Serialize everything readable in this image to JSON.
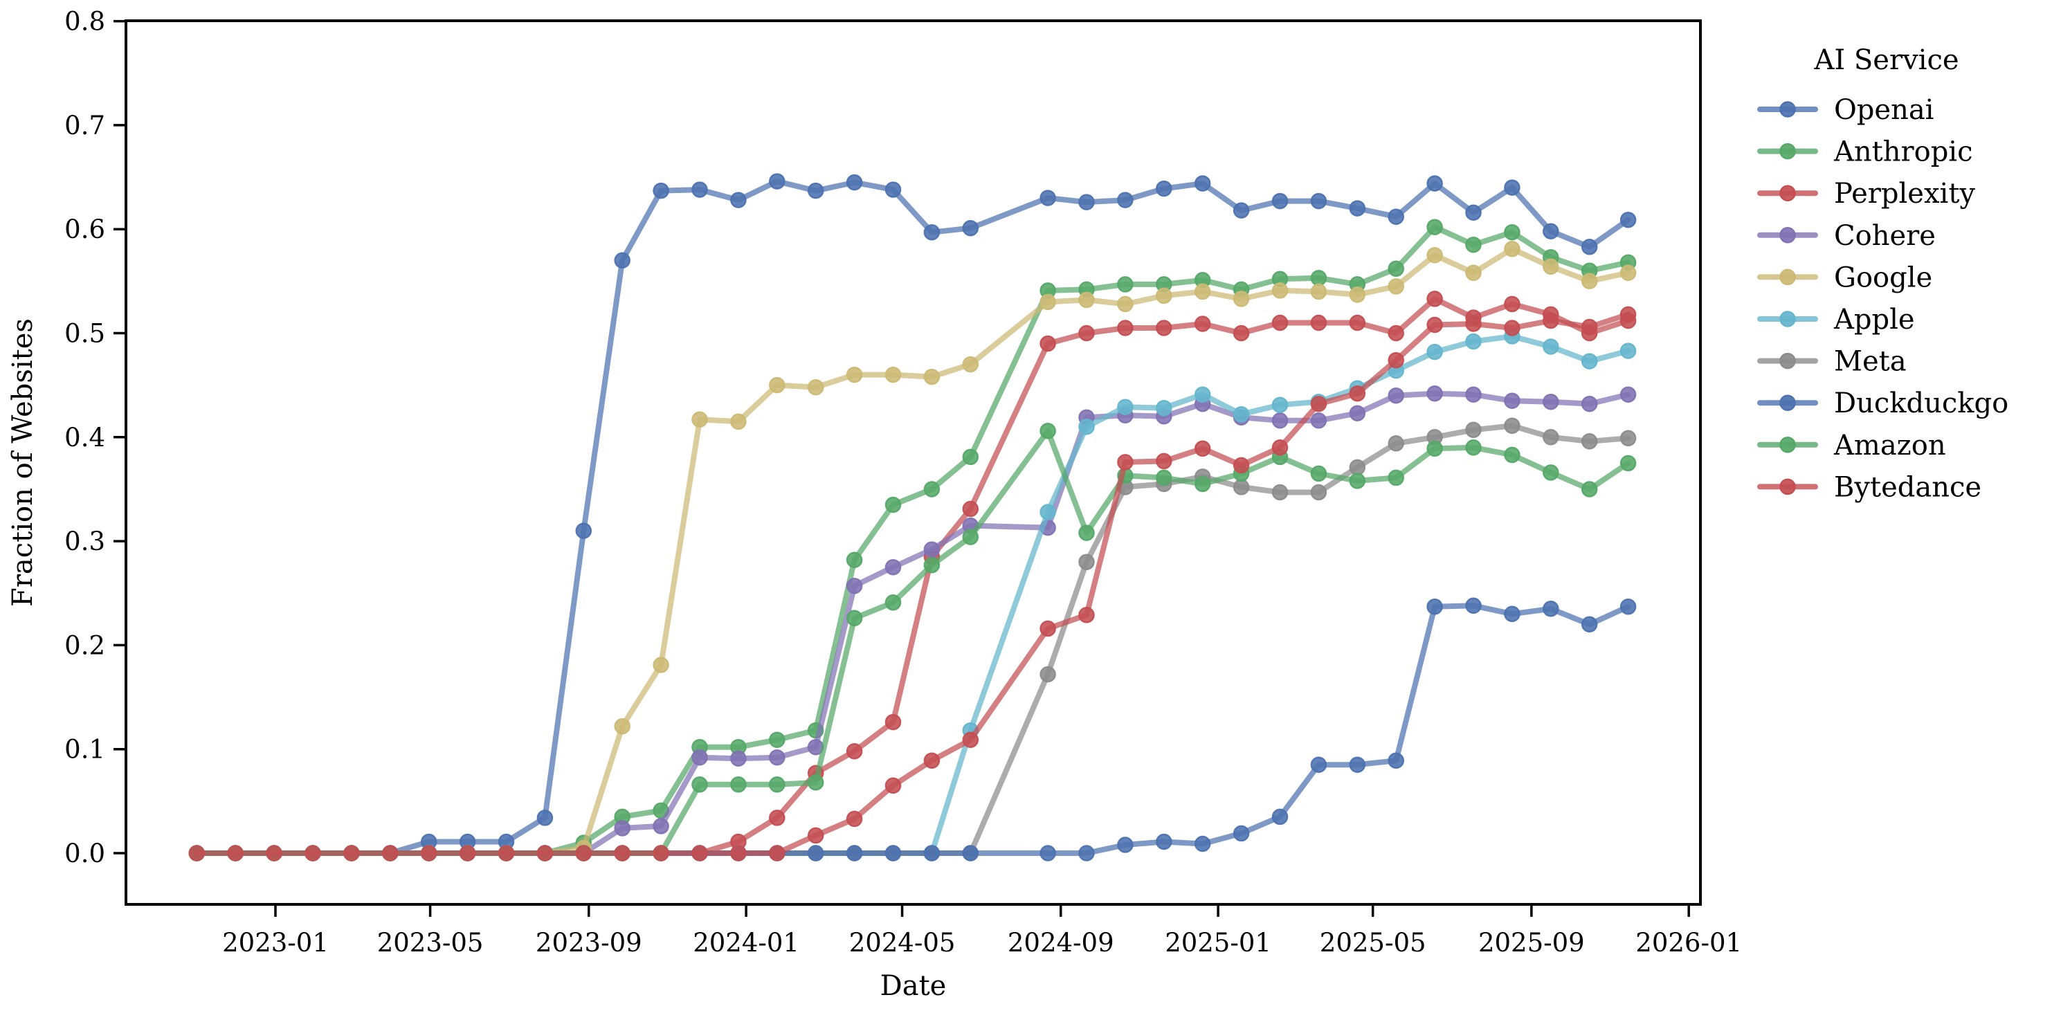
{
  "chart_data": {
    "type": "line",
    "title": "",
    "xlabel": "Date",
    "ylabel": "Fraction of Websites",
    "ylim": [
      0.0,
      0.8
    ],
    "grid": false,
    "legend_title": "AI Service",
    "legend_position": "right-outside",
    "ytick_labels": [
      "0.0",
      "0.1",
      "0.2",
      "0.3",
      "0.4",
      "0.5",
      "0.6",
      "0.7",
      "0.8"
    ],
    "yticks": [
      0.0,
      0.1,
      0.2,
      0.3,
      0.4,
      0.5,
      0.6,
      0.7,
      0.8
    ],
    "xtick_labels": [
      "2023-01",
      "2023-05",
      "2023-09",
      "2024-01",
      "2024-05",
      "2024-09",
      "2025-01",
      "2025-05",
      "2025-09",
      "2026-01"
    ],
    "xtick_day_offsets": [
      0,
      120,
      243,
      365,
      486,
      609,
      731,
      851,
      974,
      1096
    ],
    "x_months": [
      "2022-11",
      "2022-12",
      "2023-01",
      "2023-02",
      "2023-03",
      "2023-04",
      "2023-05",
      "2023-06",
      "2023-07",
      "2023-08",
      "2023-09",
      "2023-10",
      "2023-11",
      "2023-12",
      "2024-01",
      "2024-02",
      "2024-03",
      "2024-04",
      "2024-05",
      "2024-06",
      "2024-07",
      "2024-09",
      "2024-10",
      "2024-11",
      "2024-12",
      "2025-01",
      "2025-02",
      "2025-03",
      "2025-04",
      "2025-05",
      "2025-06",
      "2025-07",
      "2025-08",
      "2025-09",
      "2025-10",
      "2025-11",
      "2025-12"
    ],
    "x_sample_index": [
      0,
      1,
      2,
      3,
      4,
      5,
      6,
      7,
      8,
      9,
      10,
      11,
      12,
      13,
      14,
      15,
      16,
      17,
      18,
      19,
      20,
      22,
      23,
      24,
      25,
      26,
      27,
      28,
      29,
      30,
      31,
      32,
      33,
      34,
      35,
      36,
      37
    ],
    "series": [
      {
        "name": "Openai",
        "color": "#4C72B0",
        "values": [
          0,
          0,
          0,
          0,
          0,
          0,
          0.011,
          0.011,
          0.011,
          0.034,
          0.31,
          0.57,
          0.637,
          0.638,
          0.628,
          0.646,
          0.637,
          0.645,
          0.638,
          0.597,
          0.601,
          0.63,
          0.626,
          0.628,
          0.639,
          0.644,
          0.618,
          0.627,
          0.627,
          0.62,
          0.612,
          0.644,
          0.616,
          0.64,
          0.598,
          0.583,
          0.609
        ]
      },
      {
        "name": "Anthropic",
        "color": "#55A868",
        "values": [
          0,
          0,
          0,
          0,
          0,
          0,
          0,
          0,
          0,
          0,
          0.01,
          0.035,
          0.041,
          0.102,
          0.102,
          0.109,
          0.118,
          0.282,
          0.335,
          0.35,
          0.381,
          0.541,
          0.542,
          0.547,
          0.547,
          0.551,
          0.542,
          0.552,
          0.553,
          0.547,
          0.562,
          0.602,
          0.585,
          0.597,
          0.573,
          0.56,
          0.568
        ]
      },
      {
        "name": "Perplexity",
        "color": "#C44E52",
        "values": [
          0,
          0,
          0,
          0,
          0,
          0,
          0,
          0,
          0,
          0,
          0,
          0,
          0,
          0,
          0.011,
          0.034,
          0.077,
          0.098,
          0.126,
          0.285,
          0.331,
          0.49,
          0.5,
          0.505,
          0.505,
          0.509,
          0.5,
          0.51,
          0.51,
          0.51,
          0.5,
          0.533,
          0.515,
          0.528,
          0.518,
          0.5,
          0.512
        ]
      },
      {
        "name": "Cohere",
        "color": "#8172B3",
        "values": [
          0,
          0,
          0,
          0,
          0,
          0,
          0,
          0,
          0,
          0,
          0,
          0.024,
          0.026,
          0.092,
          0.091,
          0.092,
          0.102,
          0.257,
          0.275,
          0.292,
          0.315,
          0.313,
          0.419,
          0.421,
          0.42,
          0.432,
          0.419,
          0.416,
          0.416,
          0.423,
          0.44,
          0.442,
          0.441,
          0.435,
          0.434,
          0.432,
          0.441
        ]
      },
      {
        "name": "Google",
        "color": "#CCB974",
        "values": [
          0,
          0,
          0,
          0,
          0,
          0,
          0,
          0,
          0,
          0,
          0.005,
          0.122,
          0.181,
          0.417,
          0.415,
          0.45,
          0.448,
          0.46,
          0.46,
          0.458,
          0.47,
          0.53,
          0.532,
          0.528,
          0.536,
          0.54,
          0.533,
          0.541,
          0.54,
          0.537,
          0.545,
          0.575,
          0.558,
          0.581,
          0.564,
          0.55,
          0.558
        ]
      },
      {
        "name": "Apple",
        "color": "#64B5CD",
        "values": [
          0,
          0,
          0,
          0,
          0,
          0,
          0,
          0,
          0,
          0,
          0,
          0,
          0,
          0,
          0,
          0,
          0,
          0,
          0,
          0,
          0.118,
          0.328,
          0.41,
          0.429,
          0.428,
          0.441,
          0.422,
          0.431,
          0.434,
          0.447,
          0.464,
          0.482,
          0.492,
          0.497,
          0.487,
          0.473,
          0.483
        ]
      },
      {
        "name": "Meta",
        "color": "#8C8C8C",
        "values": [
          0,
          0,
          0,
          0,
          0,
          0,
          0,
          0,
          0,
          0,
          0,
          0,
          0,
          0,
          0,
          0,
          0,
          0,
          0,
          0,
          0,
          0.172,
          0.28,
          0.352,
          0.355,
          0.362,
          0.352,
          0.347,
          0.347,
          0.371,
          0.394,
          0.4,
          0.407,
          0.411,
          0.4,
          0.396,
          0.399
        ]
      },
      {
        "name": "Duckduckgo",
        "color": "#4C72B0",
        "values": [
          0,
          0,
          0,
          0,
          0,
          0,
          0,
          0,
          0,
          0,
          0,
          0,
          0,
          0,
          0,
          0,
          0,
          0,
          0,
          0,
          0,
          0,
          0,
          0.008,
          0.011,
          0.009,
          0.019,
          0.035,
          0.085,
          0.085,
          0.089,
          0.237,
          0.238,
          0.23,
          0.235,
          0.22,
          0.237
        ]
      },
      {
        "name": "Amazon",
        "color": "#55A868",
        "values": [
          0,
          0,
          0,
          0,
          0,
          0,
          0,
          0,
          0,
          0,
          0,
          0,
          0,
          0.066,
          0.066,
          0.066,
          0.068,
          0.226,
          0.241,
          0.277,
          0.304,
          0.406,
          0.308,
          0.363,
          0.361,
          0.355,
          0.365,
          0.381,
          0.365,
          0.358,
          0.361,
          0.389,
          0.39,
          0.383,
          0.366,
          0.35,
          0.375
        ]
      },
      {
        "name": "Bytedance",
        "color": "#C44E52",
        "values": [
          0,
          0,
          0,
          0,
          0,
          0,
          0,
          0,
          0,
          0,
          0,
          0,
          0,
          0,
          0,
          0,
          0.017,
          0.033,
          0.065,
          0.089,
          0.109,
          0.216,
          0.229,
          0.376,
          0.377,
          0.389,
          0.373,
          0.39,
          0.432,
          0.442,
          0.474,
          0.508,
          0.509,
          0.505,
          0.512,
          0.506,
          0.518
        ]
      }
    ]
  }
}
